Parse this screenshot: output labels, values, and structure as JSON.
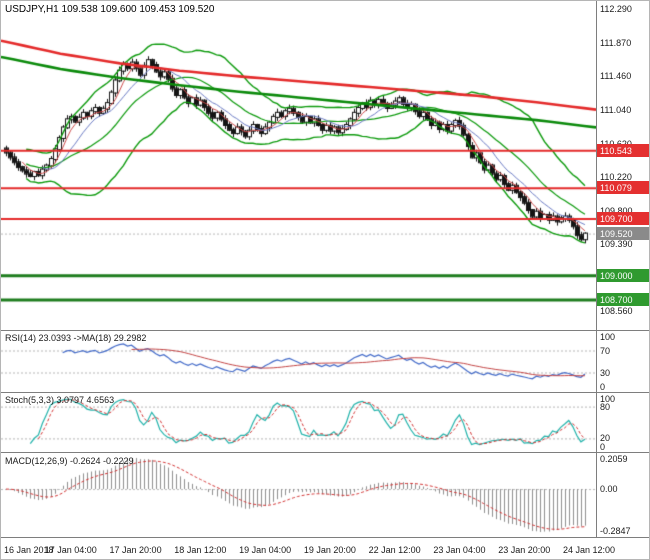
{
  "title": "USDJPY,H1 109.538 109.600 109.453 109.520",
  "colors": {
    "bull": "#ffffff",
    "bear": "#141414",
    "wick": "#141414",
    "band_green": "#0c9a0c",
    "ma_thick_red": "#e42a2a",
    "ma_thick_green": "#0b8a0b",
    "fast_ma_red": "#cc4848",
    "fast_ma_blue": "#6b7bc4",
    "hline_red": "#e42a2a",
    "hline_green": "#1e7d1e",
    "label_red": "#e43030",
    "label_green": "#2f9a2f",
    "label_gray": "#8a8a8a",
    "rsi_line": "#4169c8",
    "rsi_ma": "#c24242",
    "stoch_main": "#20b2aa",
    "stoch_signal": "#d23333",
    "macd_hist": "#8f8f8f",
    "macd_signal": "#d23333",
    "level_dash": "#b5b5b5",
    "current_dash": "#b8b8b8"
  },
  "chart_data": [
    {
      "type": "candlestick",
      "symbol": "USDJPY",
      "timeframe": "H1",
      "quote": {
        "open": "109.538",
        "high": "109.600",
        "low": "109.453",
        "close": "109.520"
      },
      "ylim": [
        108.33,
        112.39
      ],
      "y_ticks": [
        {
          "label": "112.290",
          "value": 112.29
        },
        {
          "label": "111.870",
          "value": 111.87
        },
        {
          "label": "111.460",
          "value": 111.46
        },
        {
          "label": "111.040",
          "value": 111.04
        },
        {
          "label": "110.620",
          "value": 110.62
        },
        {
          "label": "110.220",
          "value": 110.22
        },
        {
          "label": "109.800",
          "value": 109.8
        },
        {
          "label": "109.390",
          "value": 109.39
        },
        {
          "label": "108.560",
          "value": 108.56
        }
      ],
      "x_labels": [
        "16 Jan 2018",
        "17 Jan 04:00",
        "17 Jan 20:00",
        "18 Jan 12:00",
        "19 Jan 04:00",
        "19 Jan 20:00",
        "22 Jan 12:00",
        "23 Jan 04:00",
        "23 Jan 20:00",
        "24 Jan 12:00"
      ],
      "candles_per_label": 16,
      "closes": [
        110.52,
        110.46,
        110.4,
        110.34,
        110.3,
        110.26,
        110.23,
        110.28,
        110.24,
        110.31,
        110.36,
        110.44,
        110.56,
        110.7,
        110.83,
        110.93,
        110.96,
        110.9,
        110.95,
        111.01,
        110.97,
        111.03,
        111.07,
        111.01,
        111.06,
        111.13,
        111.26,
        111.41,
        111.53,
        111.61,
        111.56,
        111.63,
        111.56,
        111.48,
        111.59,
        111.66,
        111.6,
        111.52,
        111.46,
        111.51,
        111.43,
        111.31,
        111.23,
        111.29,
        111.2,
        111.13,
        111.19,
        111.11,
        111.16,
        111.08,
        111.01,
        110.95,
        111.01,
        110.93,
        110.86,
        110.8,
        110.76,
        110.83,
        110.78,
        110.72,
        110.79,
        110.86,
        110.81,
        110.76,
        110.83,
        110.89,
        110.96,
        111.01,
        110.97,
        111.03,
        111.06,
        111.01,
        110.96,
        110.9,
        110.96,
        110.89,
        110.93,
        110.86,
        110.8,
        110.85,
        110.79,
        110.83,
        110.77,
        110.81,
        110.86,
        110.93,
        111.01,
        111.07,
        111.13,
        111.08,
        111.16,
        111.11,
        111.17,
        111.12,
        111.07,
        111.11,
        111.15,
        111.19,
        111.12,
        111.07,
        111.11,
        111.03,
        110.97,
        111.01,
        110.93,
        110.86,
        110.89,
        110.81,
        110.86,
        110.79,
        110.86,
        110.91,
        110.85,
        110.74,
        110.6,
        110.46,
        110.51,
        110.4,
        110.31,
        110.36,
        110.26,
        110.19,
        110.23,
        110.13,
        110.06,
        110.11,
        110.03,
        109.97,
        109.9,
        109.81,
        109.73,
        109.79,
        109.71,
        109.75,
        109.69,
        109.73,
        109.67,
        109.71,
        109.73,
        109.69,
        109.61,
        109.5,
        109.45,
        109.52
      ],
      "hlines": [
        {
          "price": 110.543,
          "label": "110.543",
          "kind": "resistance",
          "color": "red",
          "width": 2
        },
        {
          "price": 110.079,
          "label": "110.079",
          "kind": "resistance",
          "color": "red",
          "width": 2
        },
        {
          "price": 109.7,
          "label": "109.700",
          "kind": "resistance",
          "color": "red",
          "width": 2
        },
        {
          "price": 109.0,
          "label": "109.000",
          "kind": "support",
          "color": "green",
          "width": 3
        },
        {
          "price": 108.7,
          "label": "108.700",
          "kind": "support",
          "color": "green",
          "width": 3
        }
      ],
      "current_price": {
        "value": 109.52,
        "label": "109.520"
      },
      "overlays": {
        "bollinger": {
          "period": 20,
          "deviation": 2
        },
        "fast_ma_red_period": 5,
        "fast_ma_blue_period": 10,
        "thick_red_ma_anchors": [
          [
            0,
            111.9
          ],
          [
            0.1,
            111.74
          ],
          [
            0.2,
            111.62
          ],
          [
            0.3,
            111.53
          ],
          [
            0.4,
            111.46
          ],
          [
            0.5,
            111.4
          ],
          [
            0.6,
            111.34
          ],
          [
            0.7,
            111.28
          ],
          [
            0.8,
            111.22
          ],
          [
            0.9,
            111.14
          ],
          [
            1,
            111.05
          ]
        ],
        "thick_green_ma_anchors": [
          [
            0,
            111.7
          ],
          [
            0.1,
            111.55
          ],
          [
            0.2,
            111.44
          ],
          [
            0.3,
            111.35
          ],
          [
            0.4,
            111.27
          ],
          [
            0.5,
            111.2
          ],
          [
            0.6,
            111.13
          ],
          [
            0.7,
            111.06
          ],
          [
            0.8,
            110.99
          ],
          [
            0.9,
            110.92
          ],
          [
            1,
            110.83
          ]
        ]
      }
    },
    {
      "type": "line",
      "header": "RSI(14) 23.0393 ->MA(18) 29.2982",
      "rsi_period": 14,
      "ma_period": 18,
      "current_rsi": 23.0393,
      "current_ma": 29.2982,
      "range": [
        0,
        100
      ],
      "levels": [
        70,
        30
      ],
      "y_ticks": [
        {
          "label": "100",
          "value": 100
        },
        {
          "label": "70",
          "value": 70
        },
        {
          "label": "30",
          "value": 30
        },
        {
          "label": "0",
          "value": 0
        }
      ]
    },
    {
      "type": "line",
      "header": "Stoch(5,3,3) 3.0797 4.6563",
      "k_period": 5,
      "d_period": 3,
      "slowing": 3,
      "current_k": 3.0797,
      "current_d": 4.6563,
      "range": [
        0,
        100
      ],
      "levels": [
        80,
        20
      ],
      "y_ticks": [
        {
          "label": "100",
          "value": 100
        },
        {
          "label": "80",
          "value": 80
        },
        {
          "label": "20",
          "value": 20
        },
        {
          "label": "0",
          "value": 0
        }
      ]
    },
    {
      "type": "histogram+line",
      "header": "MACD(12,26,9) -0.2624 -0.2229",
      "fast": 12,
      "slow": 26,
      "signal": 9,
      "current_macd": -0.2624,
      "current_signal": -0.2229,
      "range": [
        -0.2847,
        0.2059
      ],
      "y_ticks": [
        {
          "label": "0.2059",
          "value": 0.2059
        },
        {
          "label": "0.00",
          "value": 0
        },
        {
          "label": "-0.2847",
          "value": -0.2847
        }
      ]
    }
  ]
}
